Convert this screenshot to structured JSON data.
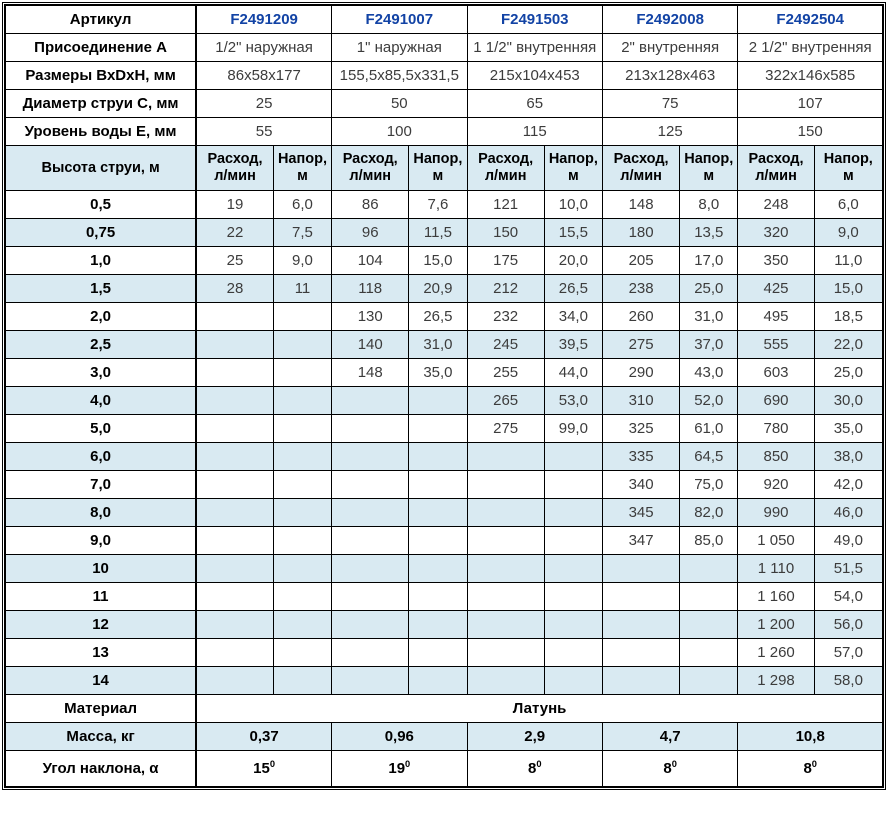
{
  "colors": {
    "article_text": "#1243a5",
    "stripe": "#d9eaf2",
    "text": "#3c3c3c",
    "border": "#000000"
  },
  "chart_data": {
    "type": "table",
    "header_row": {
      "label": "Артикул",
      "articles": [
        "F2491209",
        "F2491007",
        "F2491503",
        "F2492008",
        "F2492504"
      ]
    },
    "spec_rows": [
      {
        "label": "Присоединение А",
        "values": [
          "1/2\" наружная",
          "1\" наружная",
          "1 1/2\" внутренняя",
          "2\" внутренняя",
          "2 1/2\" внутренняя"
        ]
      },
      {
        "label": "Размеры ВхDхН, мм",
        "values": [
          "86х58х177",
          "155,5х85,5х331,5",
          "215х104х453",
          "213х128х463",
          "322х146х585"
        ]
      },
      {
        "label": "Диаметр струи С, мм",
        "values": [
          "25",
          "50",
          "65",
          "75",
          "107"
        ]
      },
      {
        "label": "Уровень воды Е, мм",
        "values": [
          "55",
          "100",
          "115",
          "125",
          "150"
        ]
      }
    ],
    "jet_section": {
      "row_label": "Высота струи, м",
      "col_flow": [
        "Расход,",
        "л/мин"
      ],
      "col_head": [
        "Напор,",
        "м"
      ],
      "rows": [
        {
          "height": "0,5",
          "values": [
            "19",
            "6,0",
            "86",
            "7,6",
            "121",
            "10,0",
            "148",
            "8,0",
            "248",
            "6,0"
          ]
        },
        {
          "height": "0,75",
          "values": [
            "22",
            "7,5",
            "96",
            "11,5",
            "150",
            "15,5",
            "180",
            "13,5",
            "320",
            "9,0"
          ]
        },
        {
          "height": "1,0",
          "values": [
            "25",
            "9,0",
            "104",
            "15,0",
            "175",
            "20,0",
            "205",
            "17,0",
            "350",
            "11,0"
          ]
        },
        {
          "height": "1,5",
          "values": [
            "28",
            "11",
            "118",
            "20,9",
            "212",
            "26,5",
            "238",
            "25,0",
            "425",
            "15,0"
          ]
        },
        {
          "height": "2,0",
          "values": [
            "",
            "",
            "130",
            "26,5",
            "232",
            "34,0",
            "260",
            "31,0",
            "495",
            "18,5"
          ]
        },
        {
          "height": "2,5",
          "values": [
            "",
            "",
            "140",
            "31,0",
            "245",
            "39,5",
            "275",
            "37,0",
            "555",
            "22,0"
          ]
        },
        {
          "height": "3,0",
          "values": [
            "",
            "",
            "148",
            "35,0",
            "255",
            "44,0",
            "290",
            "43,0",
            "603",
            "25,0"
          ]
        },
        {
          "height": "4,0",
          "values": [
            "",
            "",
            "",
            "",
            "265",
            "53,0",
            "310",
            "52,0",
            "690",
            "30,0"
          ]
        },
        {
          "height": "5,0",
          "values": [
            "",
            "",
            "",
            "",
            "275",
            "99,0",
            "325",
            "61,0",
            "780",
            "35,0"
          ]
        },
        {
          "height": "6,0",
          "values": [
            "",
            "",
            "",
            "",
            "",
            "",
            "335",
            "64,5",
            "850",
            "38,0"
          ]
        },
        {
          "height": "7,0",
          "values": [
            "",
            "",
            "",
            "",
            "",
            "",
            "340",
            "75,0",
            "920",
            "42,0"
          ]
        },
        {
          "height": "8,0",
          "values": [
            "",
            "",
            "",
            "",
            "",
            "",
            "345",
            "82,0",
            "990",
            "46,0"
          ]
        },
        {
          "height": "9,0",
          "values": [
            "",
            "",
            "",
            "",
            "",
            "",
            "347",
            "85,0",
            "1 050",
            "49,0"
          ]
        },
        {
          "height": "10",
          "values": [
            "",
            "",
            "",
            "",
            "",
            "",
            "",
            "",
            "1 110",
            "51,5"
          ]
        },
        {
          "height": "11",
          "values": [
            "",
            "",
            "",
            "",
            "",
            "",
            "",
            "",
            "1 160",
            "54,0"
          ]
        },
        {
          "height": "12",
          "values": [
            "",
            "",
            "",
            "",
            "",
            "",
            "",
            "",
            "1 200",
            "56,0"
          ]
        },
        {
          "height": "13",
          "values": [
            "",
            "",
            "",
            "",
            "",
            "",
            "",
            "",
            "1 260",
            "57,0"
          ]
        },
        {
          "height": "14",
          "values": [
            "",
            "",
            "",
            "",
            "",
            "",
            "",
            "",
            "1 298",
            "58,0"
          ]
        }
      ]
    },
    "material_row": {
      "label": "Материал",
      "value": "Латунь"
    },
    "mass_row": {
      "label": "Масса, кг",
      "values": [
        "0,37",
        "0,96",
        "2,9",
        "4,7",
        "10,8"
      ]
    },
    "angle_row": {
      "label": "Угол наклона, α",
      "values": [
        "15",
        "19",
        "8",
        "8",
        "8"
      ],
      "superscript": "0"
    }
  }
}
